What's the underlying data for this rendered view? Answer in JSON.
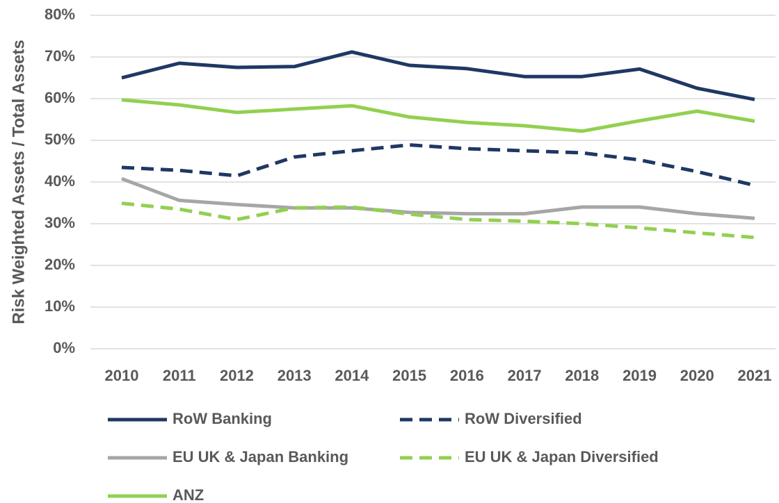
{
  "chart_data": {
    "type": "line",
    "y_label": "Risk Weighted Assets / Total Assets",
    "x": [
      2010,
      2011,
      2012,
      2013,
      2014,
      2015,
      2016,
      2017,
      2018,
      2019,
      2020,
      2021
    ],
    "ylim": [
      0,
      80
    ],
    "yticks": [
      {
        "value": 0,
        "label": "0%"
      },
      {
        "value": 10,
        "label": "10%"
      },
      {
        "value": 20,
        "label": "20%"
      },
      {
        "value": 30,
        "label": "30%"
      },
      {
        "value": 40,
        "label": "40%"
      },
      {
        "value": 50,
        "label": "50%"
      },
      {
        "value": 60,
        "label": "60%"
      },
      {
        "value": 70,
        "label": "70%"
      },
      {
        "value": 80,
        "label": "80%"
      }
    ],
    "grid": true,
    "legend": "bottom",
    "series": [
      {
        "name": "RoW Banking",
        "color": "#1f3864",
        "dashed": false,
        "values": [
          65,
          68.5,
          67.5,
          67.7,
          71.2,
          68,
          67.2,
          65.3,
          65.3,
          67.1,
          62.5,
          59.8
        ]
      },
      {
        "name": "RoW Diversified",
        "color": "#1f3864",
        "dashed": true,
        "values": [
          43.5,
          42.8,
          41.5,
          46,
          47.5,
          48.9,
          48,
          47.5,
          47,
          45.3,
          42.5,
          39.2
        ]
      },
      {
        "name": "EU UK & Japan Banking",
        "color": "#a6a6a6",
        "dashed": false,
        "values": [
          40.8,
          35.6,
          34.6,
          33.8,
          33.8,
          32.7,
          32.4,
          32.4,
          34,
          34,
          32.4,
          31.3
        ]
      },
      {
        "name": "EU UK & Japan Diversified",
        "color": "#92d050",
        "dashed": true,
        "values": [
          34.9,
          33.5,
          31,
          33.8,
          34,
          32.3,
          31,
          30.6,
          30,
          29,
          27.8,
          26.7
        ]
      },
      {
        "name": "ANZ",
        "color": "#92d050",
        "dashed": false,
        "values": [
          59.7,
          58.5,
          56.7,
          57.5,
          58.3,
          55.6,
          54.3,
          53.5,
          52.2,
          54.7,
          57,
          54.6
        ]
      }
    ]
  }
}
